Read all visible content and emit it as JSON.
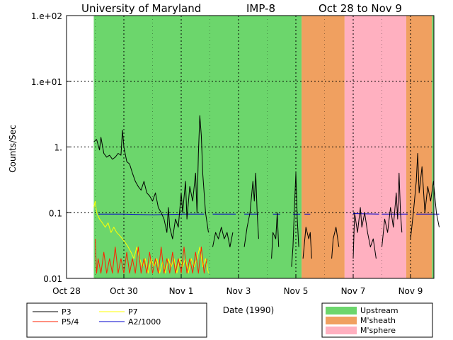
{
  "title": {
    "left": "University of Maryland",
    "center": "IMP-8",
    "right": "Oct 28 to Nov 9"
  },
  "chart_data": {
    "type": "line",
    "xlabel": "Date (1990)",
    "ylabel": "Counts/Sec",
    "xlim": [
      0,
      12.6
    ],
    "ylim": [
      0.01,
      100
    ],
    "yscale": "log",
    "grid": true,
    "x_unit_note": "days",
    "x_ticks": [
      {
        "x": 0,
        "label": "Oct 28"
      },
      {
        "x": 2,
        "label": "Oct 30"
      },
      {
        "x": 4,
        "label": "Nov 1"
      },
      {
        "x": 6,
        "label": "Nov 3"
      },
      {
        "x": 8,
        "label": "Nov 5"
      },
      {
        "x": 10,
        "label": "Nov 7"
      },
      {
        "x": 12,
        "label": "Nov 9"
      }
    ],
    "y_ticks": [
      {
        "y": 100,
        "label": "1.e+02"
      },
      {
        "y": 10,
        "label": "1.e+01"
      },
      {
        "y": 1,
        "label": "1."
      },
      {
        "y": 0.1,
        "label": "0.1"
      },
      {
        "y": 0.01,
        "label": "0.01"
      }
    ],
    "regions": [
      {
        "name": "Upstream",
        "x0": 0.95,
        "x1": 8.2,
        "color": "#6cd66c"
      },
      {
        "name": "M'sheath",
        "x0": 8.2,
        "x1": 9.7,
        "color": "#f0a060"
      },
      {
        "name": "M'sphere",
        "x0": 9.7,
        "x1": 11.85,
        "color": "#ffb0c0"
      },
      {
        "name": "M'sheath",
        "x0": 11.85,
        "x1": 12.75,
        "color": "#f0a060"
      },
      {
        "name": "Upstream",
        "x0": 12.75,
        "x1": 13.15,
        "color": "#6cd66c"
      }
    ],
    "series": [
      {
        "name": "P3",
        "color": "#000000",
        "segments": [
          [
            [
              0.95,
              1.2
            ],
            [
              1.05,
              1.3
            ],
            [
              1.15,
              0.9
            ],
            [
              1.2,
              1.4
            ],
            [
              1.3,
              0.8
            ],
            [
              1.4,
              0.7
            ],
            [
              1.5,
              0.75
            ],
            [
              1.6,
              0.65
            ],
            [
              1.7,
              0.7
            ],
            [
              1.8,
              0.8
            ],
            [
              1.9,
              0.75
            ],
            [
              1.95,
              1.8
            ],
            [
              2.0,
              1.0
            ],
            [
              2.1,
              0.6
            ],
            [
              2.2,
              0.55
            ],
            [
              2.3,
              0.4
            ],
            [
              2.4,
              0.3
            ],
            [
              2.5,
              0.25
            ],
            [
              2.6,
              0.22
            ],
            [
              2.7,
              0.3
            ],
            [
              2.8,
              0.2
            ],
            [
              2.9,
              0.18
            ],
            [
              3.0,
              0.15
            ],
            [
              3.1,
              0.2
            ],
            [
              3.2,
              0.12
            ],
            [
              3.3,
              0.1
            ],
            [
              3.4,
              0.08
            ],
            [
              3.5,
              0.05
            ],
            [
              3.55,
              0.12
            ],
            [
              3.6,
              0.06
            ],
            [
              3.7,
              0.04
            ],
            [
              3.8,
              0.08
            ],
            [
              3.9,
              0.06
            ],
            [
              4.0,
              0.2
            ],
            [
              4.05,
              0.1
            ],
            [
              4.15,
              0.3
            ],
            [
              4.2,
              0.08
            ],
            [
              4.3,
              0.25
            ],
            [
              4.4,
              0.15
            ],
            [
              4.5,
              0.4
            ],
            [
              4.55,
              0.1
            ],
            [
              4.6,
              0.8
            ],
            [
              4.65,
              3.0
            ],
            [
              4.7,
              1.5
            ],
            [
              4.75,
              0.4
            ],
            [
              4.85,
              0.1
            ],
            [
              4.95,
              0.05
            ]
          ],
          [
            [
              5.1,
              0.03
            ],
            [
              5.2,
              0.05
            ],
            [
              5.3,
              0.04
            ],
            [
              5.4,
              0.06
            ],
            [
              5.5,
              0.04
            ],
            [
              5.6,
              0.05
            ],
            [
              5.7,
              0.03
            ],
            [
              5.8,
              0.05
            ]
          ],
          [
            [
              6.2,
              0.03
            ],
            [
              6.3,
              0.06
            ],
            [
              6.4,
              0.1
            ],
            [
              6.5,
              0.3
            ],
            [
              6.55,
              0.15
            ],
            [
              6.6,
              0.4
            ],
            [
              6.65,
              0.1
            ],
            [
              6.7,
              0.04
            ]
          ],
          [
            [
              7.15,
              0.02
            ],
            [
              7.2,
              0.05
            ],
            [
              7.3,
              0.04
            ],
            [
              7.35,
              0.1
            ],
            [
              7.4,
              0.03
            ]
          ],
          [
            [
              7.85,
              0.015
            ],
            [
              7.9,
              0.03
            ],
            [
              7.95,
              0.12
            ],
            [
              8.0,
              0.4
            ],
            [
              8.05,
              0.08
            ],
            [
              8.1,
              0.03
            ]
          ],
          [
            [
              8.25,
              0.02
            ],
            [
              8.35,
              0.06
            ],
            [
              8.45,
              0.04
            ],
            [
              8.5,
              0.05
            ],
            [
              8.55,
              0.02
            ]
          ],
          [
            [
              9.25,
              0.02
            ],
            [
              9.3,
              0.04
            ],
            [
              9.4,
              0.06
            ],
            [
              9.5,
              0.03
            ]
          ],
          [
            [
              10.0,
              0.02
            ],
            [
              10.05,
              0.1
            ],
            [
              10.15,
              0.05
            ],
            [
              10.25,
              0.12
            ],
            [
              10.3,
              0.06
            ],
            [
              10.4,
              0.1
            ],
            [
              10.5,
              0.05
            ],
            [
              10.6,
              0.03
            ],
            [
              10.7,
              0.04
            ],
            [
              10.8,
              0.02
            ]
          ],
          [
            [
              11.0,
              0.03
            ],
            [
              11.1,
              0.08
            ],
            [
              11.2,
              0.05
            ],
            [
              11.3,
              0.12
            ],
            [
              11.4,
              0.06
            ],
            [
              11.5,
              0.2
            ],
            [
              11.55,
              0.08
            ],
            [
              11.6,
              0.4
            ],
            [
              11.65,
              0.1
            ],
            [
              11.7,
              0.05
            ]
          ],
          [
            [
              12.0,
              0.04
            ],
            [
              12.1,
              0.1
            ],
            [
              12.2,
              0.3
            ],
            [
              12.25,
              0.8
            ],
            [
              12.3,
              0.2
            ],
            [
              12.4,
              0.5
            ],
            [
              12.5,
              0.1
            ],
            [
              12.6,
              0.25
            ],
            [
              12.7,
              0.15
            ],
            [
              12.8,
              0.3
            ],
            [
              12.9,
              0.1
            ],
            [
              13.0,
              0.06
            ]
          ]
        ]
      },
      {
        "name": "P7",
        "color": "#ffff00",
        "segments": [
          [
            [
              0.95,
              0.12
            ],
            [
              1.0,
              0.15
            ],
            [
              1.05,
              0.1
            ],
            [
              1.15,
              0.08
            ],
            [
              1.25,
              0.07
            ],
            [
              1.35,
              0.06
            ],
            [
              1.45,
              0.07
            ],
            [
              1.55,
              0.05
            ],
            [
              1.65,
              0.06
            ],
            [
              1.75,
              0.05
            ],
            [
              1.85,
              0.045
            ],
            [
              1.95,
              0.04
            ],
            [
              2.05,
              0.035
            ],
            [
              2.15,
              0.03
            ],
            [
              2.25,
              0.025
            ],
            [
              2.35,
              0.02
            ],
            [
              2.45,
              0.03
            ],
            [
              2.55,
              0.02
            ],
            [
              2.65,
              0.015
            ],
            [
              2.75,
              0.02
            ],
            [
              2.85,
              0.012
            ],
            [
              2.95,
              0.02
            ],
            [
              3.05,
              0.015
            ],
            [
              3.15,
              0.02
            ],
            [
              3.25,
              0.012
            ],
            [
              3.35,
              0.018
            ],
            [
              3.45,
              0.012
            ],
            [
              3.55,
              0.02
            ],
            [
              3.65,
              0.015
            ],
            [
              3.75,
              0.02
            ],
            [
              3.85,
              0.012
            ],
            [
              3.95,
              0.02
            ],
            [
              4.05,
              0.015
            ],
            [
              4.15,
              0.02
            ],
            [
              4.25,
              0.012
            ],
            [
              4.35,
              0.02
            ],
            [
              4.45,
              0.015
            ],
            [
              4.55,
              0.02
            ],
            [
              4.65,
              0.03
            ],
            [
              4.75,
              0.015
            ],
            [
              4.85,
              0.02
            ],
            [
              4.95,
              0.012
            ]
          ]
        ]
      },
      {
        "name": "P5/4",
        "color": "#ff2000",
        "segments": [
          [
            [
              1.0,
              0.04
            ],
            [
              1.05,
              0.012
            ],
            [
              1.1,
              0.02
            ],
            [
              1.2,
              0.012
            ],
            [
              1.3,
              0.025
            ],
            [
              1.4,
              0.012
            ],
            [
              1.5,
              0.02
            ],
            [
              1.6,
              0.012
            ],
            [
              1.7,
              0.03
            ],
            [
              1.8,
              0.012
            ],
            [
              1.9,
              0.02
            ],
            [
              2.0,
              0.012
            ],
            [
              2.1,
              0.025
            ],
            [
              2.2,
              0.012
            ],
            [
              2.3,
              0.02
            ],
            [
              2.4,
              0.012
            ],
            [
              2.5,
              0.03
            ],
            [
              2.6,
              0.012
            ],
            [
              2.7,
              0.02
            ],
            [
              2.8,
              0.012
            ],
            [
              2.9,
              0.025
            ],
            [
              3.0,
              0.012
            ],
            [
              3.1,
              0.02
            ],
            [
              3.2,
              0.012
            ],
            [
              3.3,
              0.03
            ],
            [
              3.4,
              0.012
            ],
            [
              3.5,
              0.02
            ],
            [
              3.6,
              0.012
            ],
            [
              3.7,
              0.025
            ],
            [
              3.8,
              0.012
            ],
            [
              3.9,
              0.02
            ],
            [
              4.0,
              0.012
            ],
            [
              4.1,
              0.03
            ],
            [
              4.2,
              0.012
            ],
            [
              4.3,
              0.02
            ],
            [
              4.4,
              0.012
            ],
            [
              4.5,
              0.025
            ],
            [
              4.6,
              0.012
            ],
            [
              4.7,
              0.03
            ],
            [
              4.8,
              0.012
            ],
            [
              4.9,
              0.02
            ]
          ]
        ]
      },
      {
        "name": "A2/1000",
        "color": "#0000cc",
        "segments": [
          [
            [
              1.1,
              0.095
            ],
            [
              2.0,
              0.095
            ],
            [
              3.0,
              0.093
            ],
            [
              4.0,
              0.095
            ],
            [
              4.8,
              0.095
            ]
          ],
          [
            [
              5.1,
              0.095
            ],
            [
              5.9,
              0.095
            ]
          ],
          [
            [
              6.2,
              0.095
            ],
            [
              6.7,
              0.095
            ]
          ],
          [
            [
              7.2,
              0.095
            ],
            [
              7.45,
              0.095
            ]
          ],
          [
            [
              7.9,
              0.095
            ],
            [
              8.15,
              0.095
            ]
          ],
          [
            [
              8.3,
              0.095
            ],
            [
              8.5,
              0.095
            ]
          ],
          [
            [
              10.0,
              0.097
            ],
            [
              10.9,
              0.095
            ]
          ],
          [
            [
              11.0,
              0.095
            ],
            [
              11.9,
              0.095
            ]
          ],
          [
            [
              12.2,
              0.095
            ],
            [
              13.0,
              0.095
            ]
          ]
        ]
      }
    ]
  }
}
